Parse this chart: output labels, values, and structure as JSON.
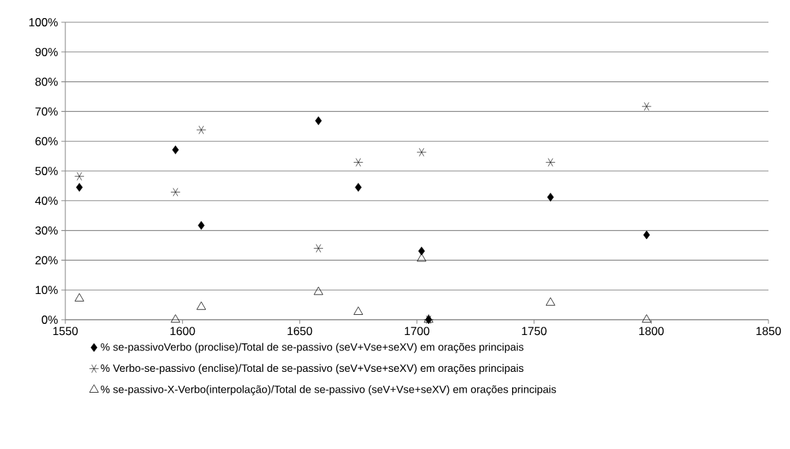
{
  "chart_data": {
    "type": "scatter",
    "x": [
      1556,
      1597,
      1608,
      1658,
      1675,
      1702,
      1705,
      1757,
      1798
    ],
    "series": [
      {
        "name": "% se-passivoVerbo (proclise)/Total de se-passivo  (seV+Vse+seXV)  em orações principais",
        "color": "#000000",
        "marker": "diamond",
        "values": [
          44.5,
          57.1,
          31.7,
          66.9,
          44.5,
          23.1,
          0,
          41.2,
          28.5
        ]
      },
      {
        "name": "% Verbo-se-passivo (enclise)/Total de se-passivo (seV+Vse+seXV) em orações principais",
        "color": "#000000",
        "marker": "cross",
        "values": [
          48.2,
          42.9,
          63.8,
          24.0,
          52.9,
          56.3,
          0,
          52.9,
          71.7
        ]
      },
      {
        "name": "% se-passivo-X-Verbo(interpolação)/Total de se-passivo  (seV+Vse+seXV) em orações principais",
        "color": "#000000",
        "marker": "triangle",
        "values": [
          7.1,
          0,
          4.3,
          9.3,
          2.6,
          20.5,
          0,
          5.7,
          0
        ]
      }
    ],
    "xlim": [
      1550,
      1850
    ],
    "xticks": [
      1550,
      1600,
      1650,
      1700,
      1750,
      1800,
      1850
    ],
    "ylim": [
      0,
      100
    ],
    "yticks": [
      {
        "value": 0,
        "label": "0%"
      },
      {
        "value": 10,
        "label": "10%"
      },
      {
        "value": 20,
        "label": "20%"
      },
      {
        "value": 30,
        "label": "30%"
      },
      {
        "value": 40,
        "label": "40%"
      },
      {
        "value": 50,
        "label": "50%"
      },
      {
        "value": 60,
        "label": "60%"
      },
      {
        "value": 70,
        "label": "70%"
      },
      {
        "value": 80,
        "label": "80%"
      },
      {
        "value": 90,
        "label": "90%"
      },
      {
        "value": 100,
        "label": "100%"
      }
    ],
    "grid": "y",
    "legend": "bottom"
  }
}
